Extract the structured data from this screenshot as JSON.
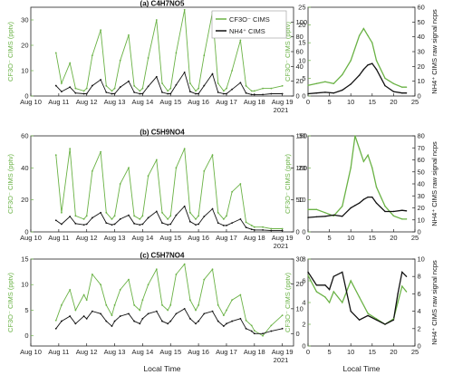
{
  "colors": {
    "green": "#6ab245",
    "black": "#111111",
    "axis": "#222222"
  },
  "legend": {
    "cf3o": "CF3O⁻ CIMS",
    "nh4": "NH4⁺ CIMS"
  },
  "x_label": "Local Time",
  "year": "2021",
  "chart_data": [
    {
      "type": "line",
      "panel": "a-timeseries",
      "title": "(a) C4H7NO5",
      "x_ticks": [
        "Aug 10",
        "Aug 11",
        "Aug 12",
        "Aug 13",
        "Aug 14",
        "Aug 15",
        "Aug 16",
        "Aug 17",
        "Aug 18",
        "Aug 19"
      ],
      "ylabel_left": "CF3O⁻ CIMS (pptv)",
      "ylabel_right": "NH4⁺ CIMS raw signal ncps",
      "ylim_left": [
        0,
        35
      ],
      "yticks_left": [
        0,
        10,
        20,
        30
      ],
      "ylim_right": [
        0,
        120
      ],
      "yticks_right": [
        0,
        20,
        40,
        60,
        80,
        100
      ],
      "x": [
        10.9,
        11.1,
        11.4,
        11.6,
        11.9,
        12.0,
        12.2,
        12.5,
        12.7,
        12.9,
        13.0,
        13.2,
        13.5,
        13.7,
        13.9,
        14.0,
        14.2,
        14.5,
        14.7,
        14.9,
        15.0,
        15.2,
        15.5,
        15.7,
        15.9,
        16.0,
        16.2,
        16.5,
        16.7,
        16.9,
        17.0,
        17.2,
        17.5,
        17.7,
        17.9,
        18.0,
        18.3,
        18.6,
        19.0
      ],
      "series": [
        {
          "name": "CF3O⁻ CIMS",
          "values": [
            17,
            5,
            13,
            3,
            2,
            3,
            16,
            26,
            4,
            2,
            3,
            14,
            24,
            4,
            2,
            3,
            15,
            30,
            5,
            2,
            3,
            17,
            34,
            5,
            2,
            3,
            16,
            33,
            5,
            2,
            3,
            10,
            22,
            4,
            2,
            2,
            3,
            3,
            4
          ]
        },
        {
          "name": "NH4⁺ CIMS",
          "values": [
            14,
            6,
            12,
            4,
            3,
            3,
            14,
            22,
            5,
            3,
            3,
            12,
            20,
            5,
            3,
            3,
            13,
            26,
            5,
            3,
            3,
            15,
            32,
            6,
            3,
            3,
            14,
            30,
            5,
            3,
            3,
            9,
            18,
            4,
            2,
            2,
            2,
            3,
            3
          ]
        }
      ]
    },
    {
      "type": "line",
      "panel": "a-diurnal",
      "x_ticks": [
        "0",
        "5",
        "10",
        "15",
        "20",
        "25"
      ],
      "xlim": [
        0,
        25
      ],
      "ylim_left": [
        0,
        25
      ],
      "yticks_left": [
        0,
        5,
        10,
        15,
        20,
        25
      ],
      "ylim_right": [
        0,
        60
      ],
      "yticks_right": [
        0,
        10,
        20,
        30,
        40,
        50,
        60
      ],
      "x": [
        0,
        2,
        4,
        6,
        8,
        10,
        12,
        13,
        14,
        15,
        16,
        18,
        20,
        22,
        23
      ],
      "series": [
        {
          "name": "CF3O⁻ CIMS",
          "values": [
            3,
            3.5,
            4,
            3.5,
            6,
            10,
            17,
            19,
            17,
            15,
            10,
            5,
            3.5,
            2.5,
            2.5
          ]
        },
        {
          "name": "NH4⁺ CIMS",
          "values": [
            1.5,
            2,
            2.5,
            2,
            4,
            8,
            14,
            18,
            21,
            22,
            18,
            7,
            3,
            2,
            2
          ]
        }
      ]
    },
    {
      "type": "line",
      "panel": "b-timeseries",
      "title": "(b) C5H9NO4",
      "x_ticks": [
        "Aug 10",
        "Aug 11",
        "Aug 12",
        "Aug 13",
        "Aug 14",
        "Aug 15",
        "Aug 16",
        "Aug 17",
        "Aug 18",
        "Aug 19"
      ],
      "ylabel_left": "CF3O⁻ CIMS (pptv)",
      "ylabel_right": "NH4⁺ CIMS raw signal ncps",
      "ylim_left": [
        0,
        60
      ],
      "yticks_left": [
        0,
        20,
        40,
        60
      ],
      "ylim_right": [
        0,
        150
      ],
      "yticks_right": [
        0,
        50,
        100,
        150
      ],
      "x": [
        10.9,
        11.1,
        11.4,
        11.6,
        11.9,
        12.0,
        12.2,
        12.5,
        12.7,
        12.9,
        13.0,
        13.2,
        13.5,
        13.7,
        13.9,
        14.0,
        14.2,
        14.5,
        14.7,
        14.9,
        15.0,
        15.2,
        15.5,
        15.7,
        15.9,
        16.0,
        16.2,
        16.5,
        16.7,
        16.9,
        17.0,
        17.2,
        17.5,
        17.7,
        17.9,
        18.0,
        18.3,
        18.6,
        19.0
      ],
      "series": [
        {
          "name": "CF3O⁻ CIMS",
          "values": [
            48,
            12,
            52,
            10,
            8,
            10,
            38,
            50,
            12,
            8,
            10,
            30,
            40,
            10,
            8,
            10,
            35,
            45,
            12,
            8,
            10,
            40,
            52,
            12,
            8,
            10,
            38,
            48,
            12,
            8,
            10,
            25,
            30,
            6,
            4,
            3,
            3,
            2,
            2
          ]
        },
        {
          "name": "NH4⁺ CIMS",
          "values": [
            18,
            12,
            24,
            13,
            11,
            12,
            22,
            30,
            14,
            11,
            12,
            20,
            26,
            13,
            11,
            12,
            22,
            32,
            14,
            11,
            12,
            26,
            40,
            16,
            11,
            12,
            24,
            36,
            14,
            10,
            10,
            14,
            20,
            7,
            4,
            3,
            3,
            2,
            2
          ]
        }
      ]
    },
    {
      "type": "line",
      "panel": "b-diurnal",
      "x_ticks": [
        "0",
        "5",
        "10",
        "15",
        "20",
        "25"
      ],
      "xlim": [
        0,
        25
      ],
      "ylim_left": [
        0,
        30
      ],
      "yticks_left": [
        0,
        10,
        20,
        30
      ],
      "ylim_right": [
        0,
        80
      ],
      "yticks_right": [
        0,
        10,
        20,
        30,
        40,
        50,
        60,
        70,
        80
      ],
      "x": [
        0,
        2,
        4,
        6,
        8,
        10,
        11,
        12,
        13,
        14,
        15,
        16,
        18,
        20,
        22,
        23
      ],
      "series": [
        {
          "name": "CF3O⁻ CIMS",
          "values": [
            7,
            7,
            6,
            5,
            8,
            20,
            30,
            26,
            22,
            24,
            20,
            14,
            8,
            5,
            4,
            4
          ]
        },
        {
          "name": "NH4⁺ CIMS",
          "values": [
            12,
            12.5,
            13,
            14,
            13,
            20,
            22,
            24,
            27,
            29,
            29,
            24,
            17,
            17,
            18,
            17.5
          ]
        }
      ]
    },
    {
      "type": "line",
      "panel": "c-timeseries",
      "title": "(c) C5H7NO4",
      "x_ticks": [
        "Aug 10",
        "Aug 11",
        "Aug 12",
        "Aug 13",
        "Aug 14",
        "Aug 15",
        "Aug 16",
        "Aug 17",
        "Aug 18",
        "Aug 19"
      ],
      "ylabel_left": "CF3O⁻ CIMS (pptv)",
      "ylabel_right": "NH4⁺ CIMS raw signal ncps",
      "ylim_left": [
        -2,
        15
      ],
      "yticks_left": [
        0,
        5,
        10,
        15
      ],
      "ylim_right": [
        -5,
        30
      ],
      "yticks_right": [
        0,
        10,
        20,
        30
      ],
      "x": [
        10.9,
        11.1,
        11.4,
        11.6,
        11.9,
        12.0,
        12.2,
        12.5,
        12.7,
        12.9,
        13.0,
        13.2,
        13.5,
        13.7,
        13.9,
        14.0,
        14.2,
        14.5,
        14.7,
        14.9,
        15.0,
        15.2,
        15.5,
        15.7,
        15.9,
        16.0,
        16.2,
        16.5,
        16.7,
        16.9,
        17.0,
        17.2,
        17.5,
        17.7,
        17.9,
        18.0,
        18.3,
        18.6,
        19.0
      ],
      "series": [
        {
          "name": "CF3O⁻ CIMS",
          "values": [
            3,
            6,
            9,
            5,
            8,
            7,
            12,
            10,
            6,
            4,
            6,
            9,
            11,
            6,
            5,
            7,
            10,
            13,
            6,
            5,
            6,
            12,
            14,
            7,
            5,
            6,
            11,
            13,
            6,
            4,
            5,
            7,
            8,
            3,
            2,
            1,
            0,
            2,
            4
          ]
        },
        {
          "name": "NH4⁺ CIMS",
          "values": [
            2,
            5,
            7,
            4,
            7,
            6,
            9,
            8,
            5,
            3,
            5,
            7,
            8,
            5,
            4,
            6,
            8,
            9,
            5,
            4,
            5,
            8,
            10,
            6,
            4,
            5,
            8,
            9,
            5,
            3,
            4,
            5,
            6,
            2,
            1,
            0,
            0,
            1,
            2
          ]
        }
      ]
    },
    {
      "type": "line",
      "panel": "c-diurnal",
      "x_ticks": [
        "0",
        "5",
        "10",
        "15",
        "20",
        "25"
      ],
      "xlim": [
        0,
        25
      ],
      "ylim_left": [
        0,
        8
      ],
      "yticks_left": [
        0,
        2,
        4,
        6,
        8
      ],
      "ylim_right": [
        0,
        10
      ],
      "yticks_right": [
        0,
        2,
        4,
        6,
        8,
        10
      ],
      "x": [
        0,
        2,
        4,
        5,
        6,
        8,
        10,
        12,
        14,
        16,
        18,
        20,
        21,
        22,
        23
      ],
      "series": [
        {
          "name": "CF3O⁻ CIMS",
          "values": [
            6.5,
            5,
            4.5,
            4,
            5,
            4,
            6,
            4.5,
            3,
            2.5,
            2,
            2.5,
            4,
            5.5,
            5
          ]
        },
        {
          "name": "NH4⁺ CIMS",
          "values": [
            8.5,
            7,
            7,
            6.5,
            8,
            8.5,
            4,
            3,
            3.5,
            3,
            2.5,
            3,
            6,
            8.5,
            8
          ]
        }
      ]
    }
  ]
}
